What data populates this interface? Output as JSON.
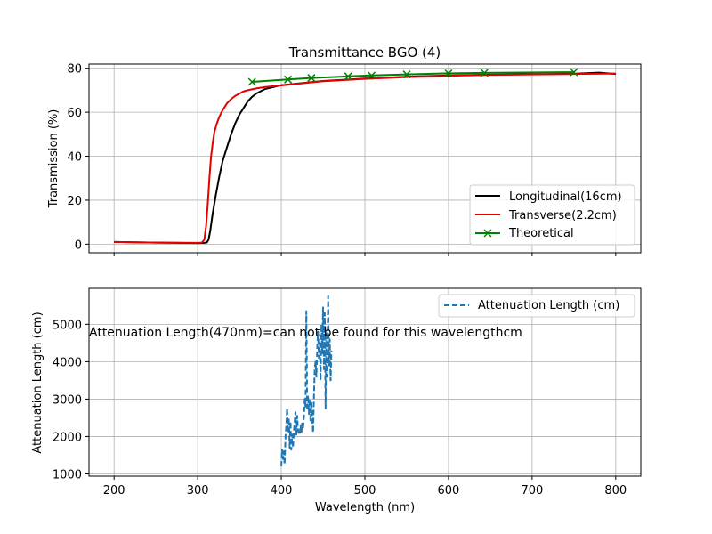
{
  "chart_data": [
    {
      "type": "line",
      "title": "Transmittance BGO (4)",
      "xlabel": "",
      "ylabel": "Transmission (%)",
      "xlim": [
        170,
        830
      ],
      "ylim": [
        -3.9,
        81.9
      ],
      "xticks": [
        200,
        300,
        400,
        500,
        600,
        700,
        800
      ],
      "yticks": [
        0,
        20,
        40,
        60,
        80
      ],
      "grid": true,
      "legend_position": "lower-right",
      "series": [
        {
          "name": "Longitudinal(16cm)",
          "color": "#000000",
          "style": "solid",
          "x": [
            200,
            250,
            300,
            308,
            311,
            313,
            315,
            318,
            322,
            326,
            330,
            335,
            340,
            345,
            350,
            355,
            360,
            365,
            370,
            380,
            400,
            450,
            500,
            550,
            600,
            650,
            700,
            750,
            780,
            800
          ],
          "y": [
            1.0,
            0.7,
            0.5,
            0.6,
            0.8,
            2.0,
            6.0,
            14.0,
            23.0,
            31.0,
            38.0,
            44.0,
            50.0,
            55.0,
            59.0,
            62.0,
            65.0,
            67.0,
            68.5,
            70.5,
            72.3,
            74.2,
            75.3,
            76.1,
            76.7,
            77.1,
            77.3,
            77.5,
            78.0,
            77.4
          ]
        },
        {
          "name": "Transverse(2.2cm)",
          "color": "#e60000",
          "style": "solid",
          "x": [
            200,
            250,
            300,
            305,
            308,
            310,
            312,
            314,
            316,
            318,
            320,
            323,
            326,
            330,
            335,
            340,
            345,
            350,
            355,
            360,
            370,
            380,
            400,
            450,
            500,
            550,
            600,
            650,
            700,
            750,
            800
          ],
          "y": [
            1.0,
            0.7,
            0.6,
            0.7,
            2.0,
            8.0,
            18.0,
            30.0,
            40.0,
            46.0,
            51.0,
            55.0,
            58.0,
            61.0,
            64.0,
            66.0,
            67.5,
            68.5,
            69.5,
            70.0,
            70.8,
            71.4,
            72.2,
            74.1,
            75.2,
            76.0,
            76.6,
            77.0,
            77.2,
            77.4,
            77.6
          ]
        },
        {
          "name": "Theoretical",
          "color": "#008000",
          "style": "solid-x-markers",
          "x": [
            365,
            408,
            436,
            480,
            508,
            550,
            600,
            643,
            750
          ],
          "y": [
            73.8,
            74.9,
            75.6,
            76.3,
            76.7,
            77.2,
            77.7,
            77.9,
            78.2
          ]
        }
      ]
    },
    {
      "type": "line",
      "title": "",
      "xlabel": "Wavelength (nm)",
      "ylabel": "Attenuation Length (cm)",
      "xlim": [
        170,
        830
      ],
      "ylim": [
        940,
        5960
      ],
      "xticks": [
        200,
        300,
        400,
        500,
        600,
        700,
        800
      ],
      "yticks": [
        1000,
        2000,
        3000,
        4000,
        5000
      ],
      "grid": true,
      "legend_position": "upper-right",
      "annotation": "Attenuation Length(470nm)=can not be found for this wavelengthcm",
      "series": [
        {
          "name": "Attenuation Length (cm)",
          "color": "#1f77b4",
          "style": "dashed",
          "x": [
            400,
            401,
            402,
            403,
            404,
            405,
            406,
            407,
            408,
            409,
            410,
            411,
            412,
            413,
            414,
            415,
            416,
            417,
            418,
            419,
            420,
            421,
            422,
            423,
            424,
            425,
            426,
            427,
            428,
            429,
            430,
            431,
            432,
            433,
            434,
            435,
            436,
            437,
            438,
            439,
            440,
            441,
            442,
            443,
            444,
            445,
            446,
            447,
            448,
            449,
            450,
            451,
            452,
            453,
            454,
            455,
            456,
            457,
            458,
            459,
            460
          ],
          "y": [
            1200,
            1650,
            1400,
            1600,
            1250,
            2000,
            2300,
            2750,
            2100,
            2500,
            1700,
            2400,
            1650,
            2050,
            1700,
            2150,
            2400,
            2650,
            2050,
            2550,
            2200,
            2050,
            2050,
            2300,
            2100,
            2350,
            2200,
            2500,
            3000,
            2800,
            5350,
            2700,
            3100,
            2600,
            3000,
            2400,
            2900,
            2500,
            2100,
            3000,
            3800,
            4000,
            3600,
            4400,
            4800,
            4100,
            4500,
            3500,
            5000,
            4200,
            5450,
            3800,
            5300,
            2750,
            4800,
            3600,
            5750,
            3900,
            4600,
            3500,
            4300
          ]
        }
      ]
    }
  ]
}
